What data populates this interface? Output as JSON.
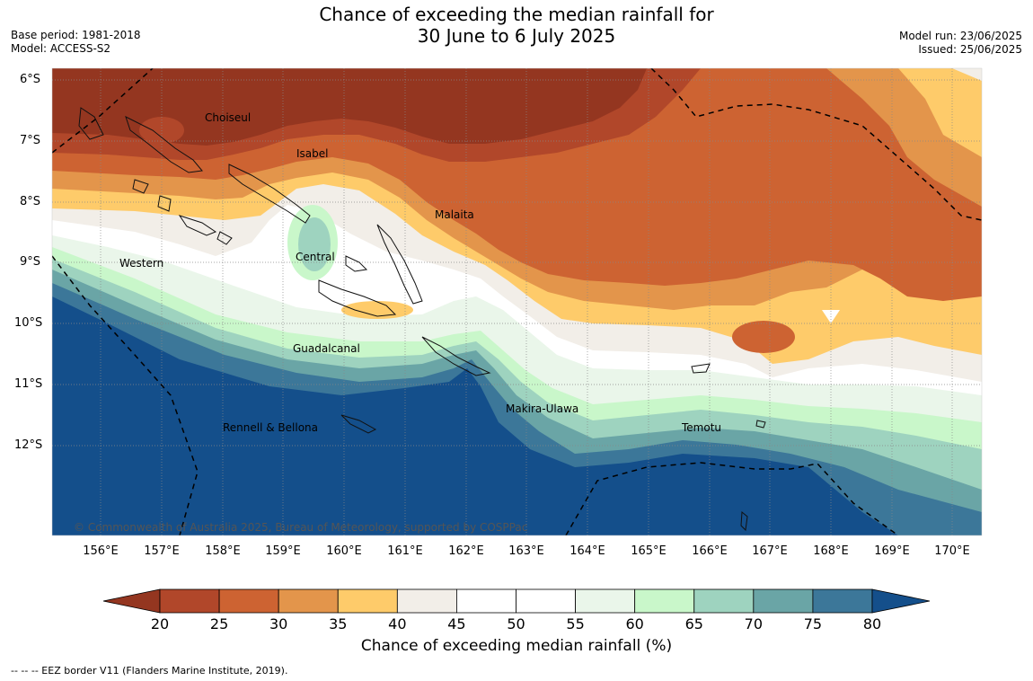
{
  "header": {
    "title_line1": "Chance of exceeding the median rainfall for",
    "title_line2": "30 June to 6 July 2025",
    "base_period": "Base period: 1981-2018",
    "model": "Model: ACCESS-S2",
    "model_run": "Model run: 23/06/2025",
    "issued": "Issued: 25/06/2025"
  },
  "map": {
    "latitude_labels": [
      "6°S",
      "7°S",
      "8°S",
      "9°S",
      "10°S",
      "11°S",
      "12°S"
    ],
    "longitude_labels": [
      "156°E",
      "157°E",
      "158°E",
      "159°E",
      "160°E",
      "161°E",
      "162°E",
      "163°E",
      "164°E",
      "165°E",
      "166°E",
      "167°E",
      "168°E",
      "169°E",
      "170°E"
    ],
    "regions": {
      "choiseul": "Choiseul",
      "isabel": "Isabel",
      "malaita": "Malaita",
      "central": "Central",
      "western": "Western",
      "guadalcanal": "Guadalcanal",
      "makira_ulawa": "Makira-Ulawa",
      "temotu": "Temotu",
      "rennell_bellona": "Rennell & Bellona"
    },
    "copyright": "© Commonwealth of Australia 2025, Bureau of Meteorology, supported by COSPPac"
  },
  "legend": {
    "ticks": [
      "20",
      "25",
      "30",
      "35",
      "40",
      "45",
      "50",
      "55",
      "60",
      "65",
      "70",
      "75",
      "80"
    ],
    "title": "Chance of exceeding median rainfall (%)",
    "colors": {
      "below_20": "#943620",
      "20-25": "#b1472a",
      "25-30": "#cd6332",
      "30-35": "#e3954b",
      "35-40": "#fecb6a",
      "40-45": "#f2eee8",
      "45-50": "#ffffff",
      "50-55": "#ffffff",
      "55-60": "#eaf6ea",
      "60-65": "#c9f7ca",
      "65-70": "#9ed3bf",
      "70-75": "#6aa5a6",
      "75-80": "#3c7799",
      "above_80": "#144f8b"
    }
  },
  "footer": {
    "eez_note": "--  --  -- EEZ border V11 (Flanders Marine Institute, 2019)."
  }
}
